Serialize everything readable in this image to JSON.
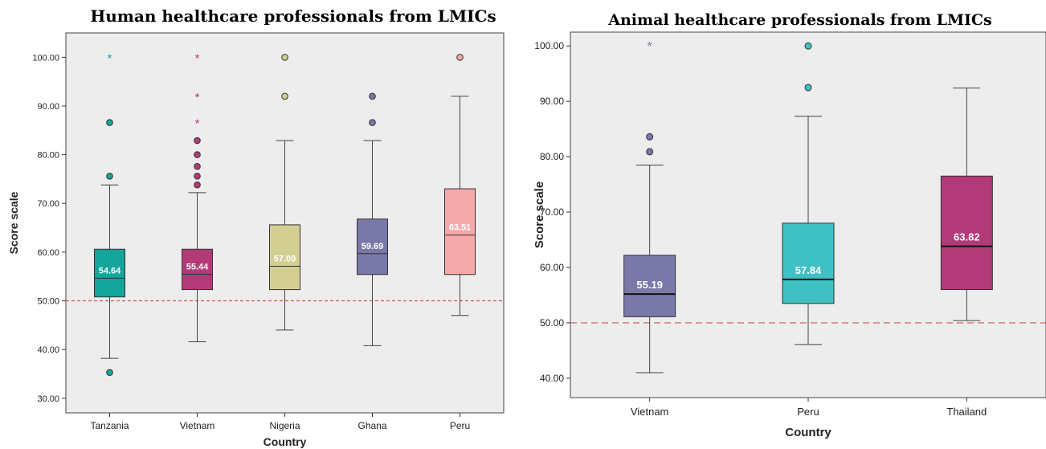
{
  "chart_data": [
    {
      "type": "box",
      "title": "Human healthcare professionals from LMICs",
      "xlabel": "Country",
      "ylabel": "Score scale",
      "ylim": [
        27,
        105
      ],
      "yticks": [
        "30.00",
        "40.00",
        "50.00",
        "60.00",
        "70.00",
        "80.00",
        "90.00",
        "100.00"
      ],
      "reference_line": 50,
      "categories": [
        "Tanzania",
        "Vietnam",
        "Nigeria",
        "Ghana",
        "Peru"
      ],
      "colors": [
        "#14a59b",
        "#b33a78",
        "#d3cf93",
        "#7a78a8",
        "#f6a9aa"
      ],
      "boxes": [
        {
          "q1": 50.8,
          "median": 54.64,
          "q3": 60.6,
          "whisker_low": 38.2,
          "whisker_high": 73.8,
          "median_label": "54.64",
          "outliers": [
            {
              "v": 35.3,
              "m": "o"
            },
            {
              "v": 75.6,
              "m": "o"
            },
            {
              "v": 86.6,
              "m": "o"
            },
            {
              "v": 100,
              "m": "*"
            }
          ]
        },
        {
          "q1": 52.3,
          "median": 55.44,
          "q3": 60.6,
          "whisker_low": 41.6,
          "whisker_high": 72.2,
          "median_label": "55.44",
          "outliers": [
            {
              "v": 73.8,
              "m": "o"
            },
            {
              "v": 75.6,
              "m": "o"
            },
            {
              "v": 77.6,
              "m": "o"
            },
            {
              "v": 80.0,
              "m": "o"
            },
            {
              "v": 82.9,
              "m": "o"
            },
            {
              "v": 86.6,
              "m": "*"
            },
            {
              "v": 92.0,
              "m": "*"
            },
            {
              "v": 100,
              "m": "*"
            }
          ]
        },
        {
          "q1": 52.3,
          "median": 57.09,
          "q3": 65.6,
          "whisker_low": 44.0,
          "whisker_high": 82.9,
          "median_label": "57.09",
          "outliers": [
            {
              "v": 92.0,
              "m": "o"
            },
            {
              "v": 100,
              "m": "o"
            }
          ]
        },
        {
          "q1": 55.4,
          "median": 59.69,
          "q3": 66.8,
          "whisker_low": 40.8,
          "whisker_high": 82.9,
          "median_label": "59.69",
          "outliers": [
            {
              "v": 86.6,
              "m": "o"
            },
            {
              "v": 92.0,
              "m": "o"
            }
          ]
        },
        {
          "q1": 55.4,
          "median": 63.51,
          "q3": 73.0,
          "whisker_low": 47.0,
          "whisker_high": 92.0,
          "median_label": "63.51",
          "outliers": [
            {
              "v": 100,
              "m": "o"
            }
          ]
        }
      ]
    },
    {
      "type": "box",
      "title": "Animal healthcare professionals from LMICs",
      "xlabel": "Country",
      "ylabel": "Score scale",
      "ylim": [
        36.5,
        102.5
      ],
      "yticks": [
        "40.00",
        "50.00",
        "60.00",
        "70.00",
        "80.00",
        "90.00",
        "100.00"
      ],
      "reference_line": 50,
      "categories": [
        "Vietnam",
        "Peru",
        "Thailand"
      ],
      "colors": [
        "#7a78a8",
        "#3fc1c3",
        "#b33a78"
      ],
      "boxes": [
        {
          "q1": 51.1,
          "median": 55.19,
          "q3": 62.2,
          "whisker_low": 41.0,
          "whisker_high": 78.5,
          "median_label": "55.19",
          "outliers": [
            {
              "v": 80.9,
              "m": "o"
            },
            {
              "v": 83.6,
              "m": "o"
            },
            {
              "v": 100,
              "m": "*"
            }
          ]
        },
        {
          "q1": 53.5,
          "median": 57.84,
          "q3": 68.0,
          "whisker_low": 46.1,
          "whisker_high": 87.3,
          "median_label": "57.84",
          "outliers": [
            {
              "v": 92.5,
              "m": "o"
            },
            {
              "v": 100,
              "m": "o"
            }
          ]
        },
        {
          "q1": 56.0,
          "median": 63.82,
          "q3": 76.5,
          "whisker_low": 50.4,
          "whisker_high": 92.4,
          "median_label": "63.82",
          "outliers": []
        }
      ]
    }
  ]
}
